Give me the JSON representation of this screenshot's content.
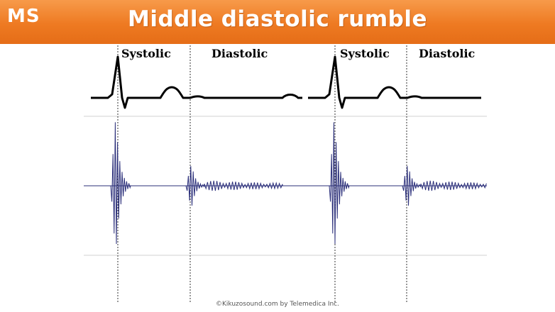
{
  "header": {
    "badge": "MS",
    "title": "Middle diastolic rumble"
  },
  "phases": {
    "systolic_label": "Systolic",
    "diastolic_label": "Diastolic"
  },
  "credit": "©Kikuzosound.com by Telemedica Inc.",
  "colors": {
    "header": "#ee7a22",
    "ecg": "#000000",
    "phonocardiogram": "#2b2f7a",
    "guide_lines": "#c8c8c8",
    "markers": "#333333"
  }
}
